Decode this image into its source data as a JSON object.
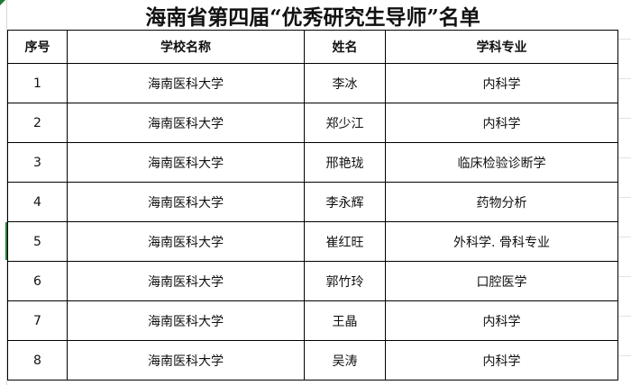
{
  "title": "海南省第四届“优秀研究生导师”名单",
  "columns": [
    "序号",
    "学校名称",
    "姓名",
    "学科专业"
  ],
  "rows": [
    [
      "1",
      "海南医科大学",
      "李冰",
      "内科学"
    ],
    [
      "2",
      "海南医科大学",
      "郑少江",
      "内科学"
    ],
    [
      "3",
      "海南医科大学",
      "邢艳珑",
      "临床检验诊断学"
    ],
    [
      "4",
      "海南医科大学",
      "李永辉",
      "药物分析"
    ],
    [
      "5",
      "海南医科大学",
      "崔红旺",
      "外科学. 骨科专业"
    ],
    [
      "6",
      "海南医科大学",
      "郭竹玲",
      "口腔医学"
    ],
    [
      "7",
      "海南医科大学",
      "王晶",
      "内科学"
    ],
    [
      "8",
      "海南医科大学",
      "吴涛",
      "内科学"
    ]
  ]
}
